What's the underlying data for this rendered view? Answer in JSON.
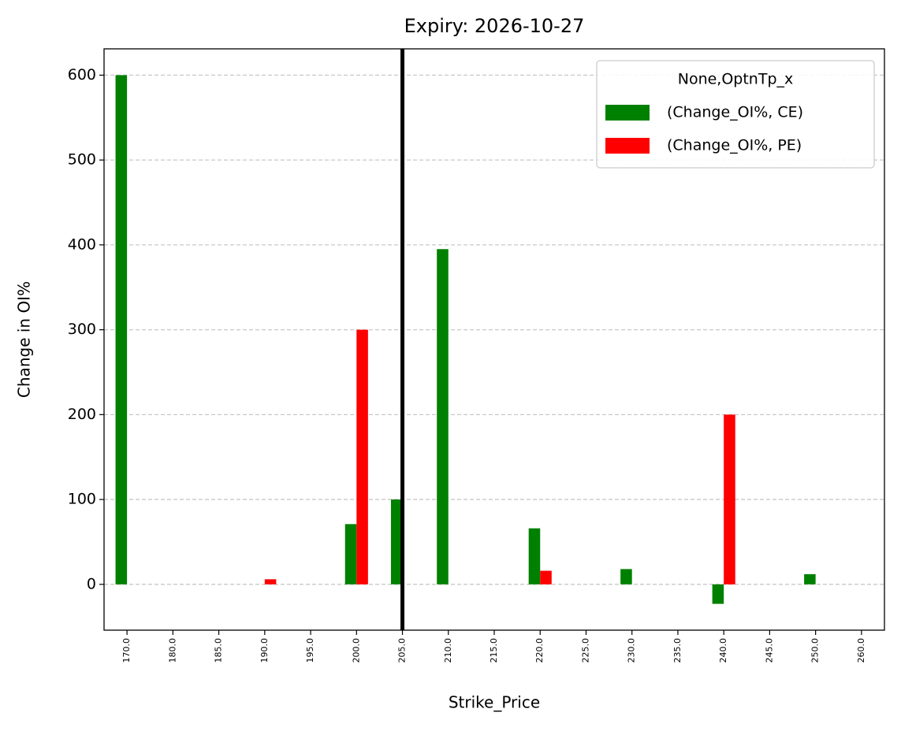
{
  "chart_data": {
    "type": "bar",
    "title": "Expiry: 2026-10-27",
    "x_label": "Strike_Price",
    "y_label": "Change in OI%",
    "categories": [
      "170.0",
      "180.0",
      "185.0",
      "190.0",
      "195.0",
      "200.0",
      "205.0",
      "210.0",
      "215.0",
      "220.0",
      "225.0",
      "230.0",
      "235.0",
      "240.0",
      "245.0",
      "250.0",
      "260.0"
    ],
    "series": [
      {
        "name": "(Change_OI%, CE)",
        "color": "#008000",
        "values": [
          600,
          0,
          0,
          0,
          0,
          71,
          100,
          395,
          0,
          66,
          0,
          18,
          0,
          -23,
          0,
          12,
          0
        ]
      },
      {
        "name": "(Change_OI%, PE)",
        "color": "#ff0000",
        "values": [
          0,
          0,
          0,
          6,
          0,
          300,
          0,
          0,
          0,
          16,
          0,
          0,
          0,
          200,
          0,
          0,
          0
        ]
      }
    ],
    "legend_title": "None,OptnTp_x",
    "legend_position": "upper right",
    "vline": {
      "x": 6,
      "color": "#000000"
    },
    "ylim": [
      -54,
      631
    ],
    "yticks": [
      0,
      100,
      200,
      300,
      400,
      500,
      600
    ],
    "grid": true
  }
}
